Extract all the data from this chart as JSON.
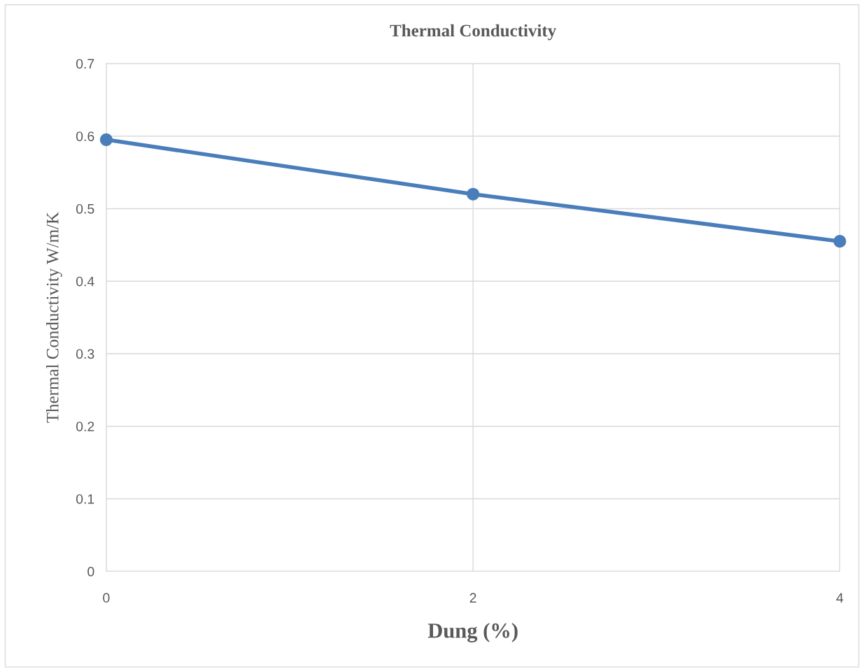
{
  "chart_data": {
    "type": "line",
    "title": "Thermal Conductivity",
    "xlabel": "Dung (%)",
    "ylabel": "Thermal Conductivity W/m/K",
    "x": [
      0,
      2,
      4
    ],
    "series": [
      {
        "color": "#4a7ebb",
        "values": [
          0.595,
          0.52,
          0.455
        ]
      }
    ],
    "xlim": [
      0,
      4
    ],
    "xticks": [
      0,
      2,
      4
    ],
    "ylim": [
      0,
      0.7
    ],
    "yticks": [
      0,
      0.1,
      0.2,
      0.3,
      0.4,
      0.5,
      0.6,
      0.7
    ],
    "grid": true,
    "marker": "circle",
    "line_style": "solid"
  }
}
